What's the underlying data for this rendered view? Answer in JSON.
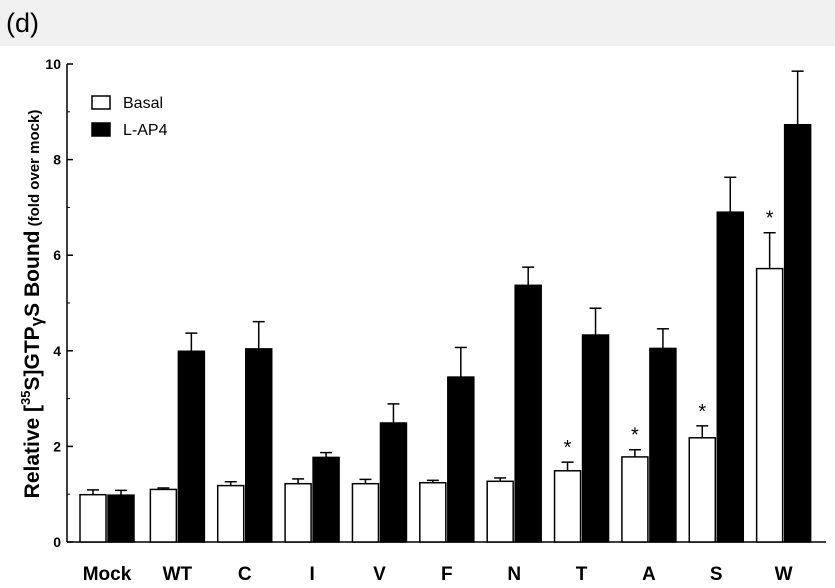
{
  "panel_label": "(d)",
  "colors": {
    "basal": "#ffffff",
    "lap4": "#000000",
    "background": "#ffffff",
    "header_band": "#f0f0f0"
  },
  "chart_data": {
    "type": "bar",
    "ylabel": "Relative [³⁵S]GTPγS Bound (fold over mock)",
    "ylabel_parts": {
      "prefix": "Relative [",
      "superscript": "35",
      "main": "S]GTP",
      "gamma": "γ",
      "tail": "S Bound",
      "small": "(fold over mock)"
    },
    "xlabel": "",
    "ylim": [
      0,
      10
    ],
    "yticks": [
      "0",
      "2",
      "4",
      "6",
      "8",
      "10"
    ],
    "categories": [
      "Mock",
      "WT",
      "C",
      "I",
      "V",
      "F",
      "N",
      "T",
      "A",
      "S",
      "W"
    ],
    "series": [
      {
        "name": "Basal",
        "color": "#ffffff",
        "values": [
          0.99,
          1.1,
          1.18,
          1.22,
          1.22,
          1.24,
          1.27,
          1.49,
          1.78,
          2.18,
          5.72
        ],
        "errors": [
          0.1,
          0.03,
          0.08,
          0.1,
          0.09,
          0.05,
          0.07,
          0.18,
          0.15,
          0.25,
          0.75
        ]
      },
      {
        "name": "L-AP4",
        "color": "#000000",
        "values": [
          0.98,
          3.99,
          4.04,
          1.77,
          2.49,
          3.45,
          5.37,
          4.33,
          4.05,
          6.9,
          8.73
        ],
        "errors": [
          0.1,
          0.38,
          0.57,
          0.1,
          0.4,
          0.62,
          0.38,
          0.56,
          0.41,
          0.73,
          1.12
        ]
      }
    ],
    "annotations": [
      {
        "category": "T",
        "text": "*"
      },
      {
        "category": "A",
        "text": "*"
      },
      {
        "category": "S",
        "text": "*"
      },
      {
        "category": "W",
        "text": "*"
      }
    ],
    "legend": {
      "placement": "top-left",
      "entries": [
        "Basal",
        "L-AP4"
      ]
    },
    "grid": false
  }
}
